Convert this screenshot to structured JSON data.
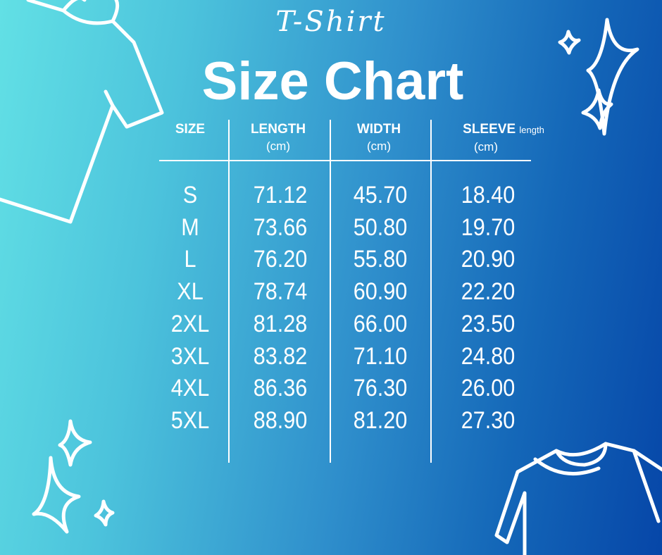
{
  "header": {
    "script_title": "T-Shirt",
    "title": "Size Chart"
  },
  "columns": [
    {
      "label": "SIZE",
      "sub": "",
      "unit": ""
    },
    {
      "label": "LENGTH",
      "sub": "",
      "unit": "(cm)"
    },
    {
      "label": "WIDTH",
      "sub": "",
      "unit": "(cm)"
    },
    {
      "label": "SLEEVE",
      "sub": "length",
      "unit": "(cm)"
    }
  ],
  "rows": [
    [
      "S",
      "71.12",
      "45.70",
      "18.40"
    ],
    [
      "M",
      "73.66",
      "50.80",
      "19.70"
    ],
    [
      "L",
      "76.20",
      "55.80",
      "20.90"
    ],
    [
      "XL",
      "78.74",
      "60.90",
      "22.20"
    ],
    [
      "2XL",
      "81.28",
      "66.00",
      "23.50"
    ],
    [
      "3XL",
      "83.82",
      "71.10",
      "24.80"
    ],
    [
      "4XL",
      "86.36",
      "76.30",
      "26.00"
    ],
    [
      "5XL",
      "88.90",
      "81.20",
      "27.30"
    ]
  ],
  "colors": {
    "gradient_left": "#62e0e5",
    "gradient_right": "#0646a8",
    "text": "#ffffff"
  },
  "icons": [
    "tshirt-icon",
    "sparkle-icon"
  ]
}
